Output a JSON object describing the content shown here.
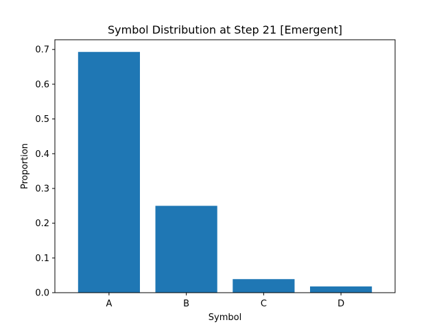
{
  "chart_data": {
    "type": "bar",
    "title": "Symbol Distribution at Step 21 [Emergent]",
    "xlabel": "Symbol",
    "ylabel": "Proportion",
    "categories": [
      "A",
      "B",
      "C",
      "D"
    ],
    "values": [
      0.693,
      0.25,
      0.039,
      0.018
    ],
    "ylim": [
      0,
      0.728
    ],
    "yticks": [
      0.0,
      0.1,
      0.2,
      0.3,
      0.4,
      0.5,
      0.6,
      0.7
    ],
    "ytick_labels": [
      "0.0",
      "0.1",
      "0.2",
      "0.3",
      "0.4",
      "0.5",
      "0.6",
      "0.7"
    ],
    "bar_color": "#1f77b4",
    "grid": false,
    "legend": false
  }
}
